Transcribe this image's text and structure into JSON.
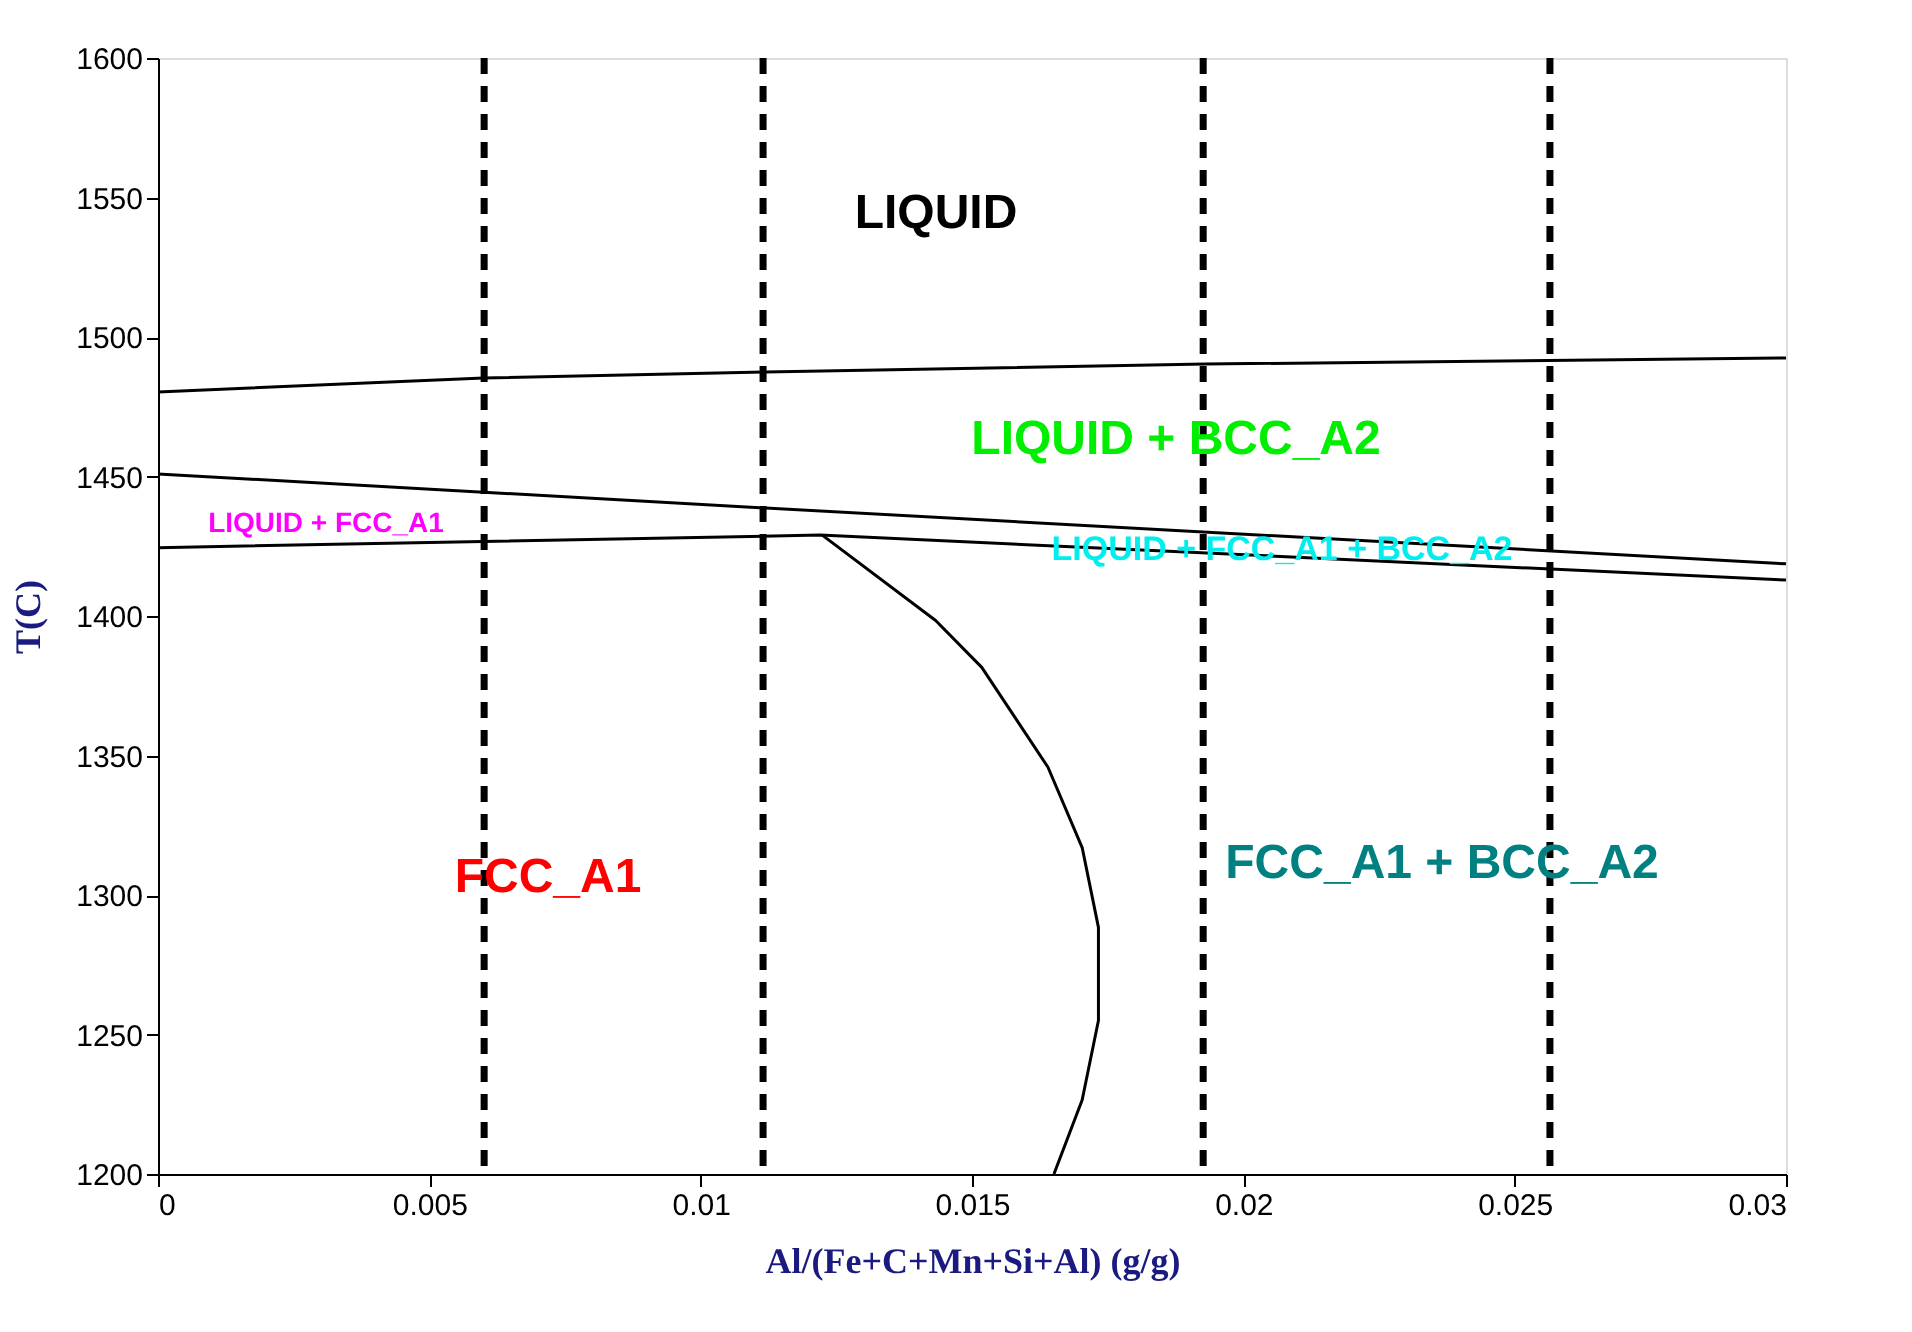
{
  "chart_data": {
    "type": "line",
    "xlabel": "Al/(Fe+C+Mn+Si+Al) (g/g)",
    "ylabel": "T(C)",
    "xlim": [
      0,
      0.03
    ],
    "xticks": [
      0,
      0.005,
      0.01,
      0.015,
      0.02,
      0.025,
      0.03
    ],
    "ylim": [
      1200,
      1600
    ],
    "yticks": [
      {
        "value": 1200,
        "label": "1200"
      },
      {
        "value": 1250,
        "label": "1250"
      },
      {
        "value": 1300,
        "label": "1300"
      },
      {
        "value": 1350,
        "label": "1350"
      },
      {
        "value": 1400,
        "label": "1400"
      },
      {
        "value": 1450,
        "label": "1450"
      },
      {
        "value": 1500,
        "label": "1500"
      },
      {
        "value": 1550,
        "label": "1550"
      },
      {
        "value": 1600,
        "label": "1600"
      }
    ],
    "grid": false,
    "marker": "none",
    "line_style": "solid",
    "series": [
      {
        "color": "#000000",
        "x": [
          0,
          0.006,
          0.0112,
          0.0193,
          0.03
        ],
        "values": [
          1480.3,
          1485.3,
          1487.5,
          1490.3,
          1492.5
        ]
      },
      {
        "color": "#000000",
        "x": [
          0,
          0.0112,
          0.03
        ],
        "values": [
          1450.9,
          1438.7,
          1418.7
        ]
      },
      {
        "color": "#000000",
        "x": [
          0,
          0.0122,
          0.03
        ],
        "values": [
          1424.5,
          1429,
          1412.9
        ]
      },
      {
        "color": "#000000",
        "x": [
          0.01224,
          0.01433,
          0.01518,
          0.0164,
          0.01703,
          0.01733,
          0.01733,
          0.01703,
          0.01651
        ],
        "values": [
          1429,
          1398.4,
          1381.6,
          1345.8,
          1317,
          1288.4,
          1255,
          1226.5,
          1200
        ]
      }
    ],
    "ref_lines": [
      {
        "axis": "x",
        "value": 0.00601,
        "color": "#000000",
        "line_style": "dashed"
      },
      {
        "axis": "x",
        "value": 0.01115,
        "color": "#000000",
        "line_style": "dashed"
      },
      {
        "axis": "x",
        "value": 0.01926,
        "color": "#000000",
        "line_style": "dashed"
      },
      {
        "axis": "x",
        "value": 0.02565,
        "color": "#000000",
        "line_style": "dashed"
      }
    ],
    "annotations": [
      "LIQUID",
      "LIQUID + BCC_A2",
      "LIQUID + FCC_A1",
      "LIQUID + FCC_A1 + BCC_A2",
      "FCC_A1",
      "FCC_A1 + BCC_A2"
    ]
  }
}
